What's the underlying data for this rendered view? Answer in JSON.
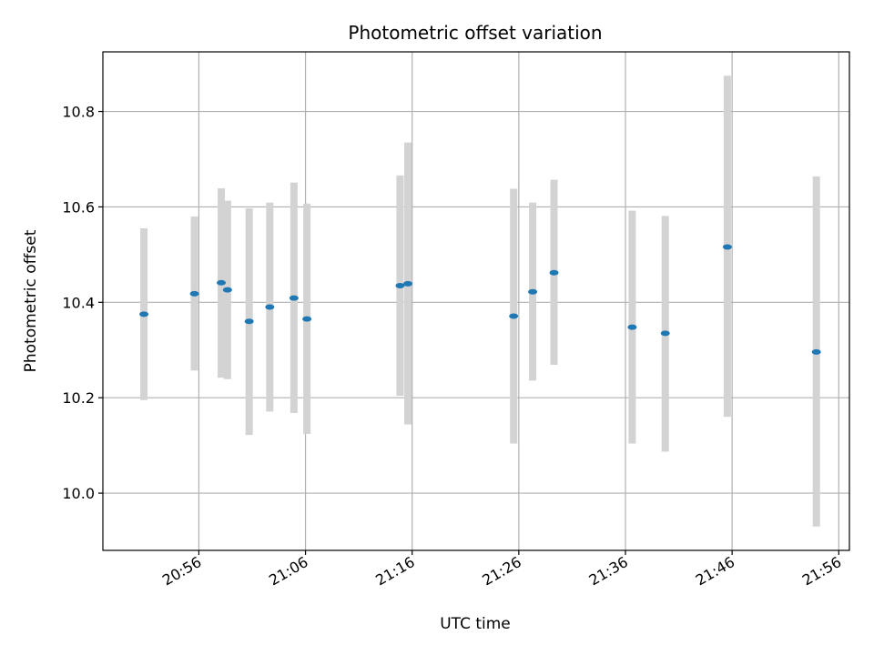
{
  "chart_data": {
    "type": "scatter",
    "title": "Photometric offset variation",
    "xlabel": "UTC time",
    "ylabel": "Photometric offset",
    "x_unit": "UTC time (HH:MM)",
    "xlim": [
      "20:47",
      "21:57"
    ],
    "ylim": [
      9.88,
      10.925
    ],
    "xticks": [
      "20:56",
      "21:06",
      "21:16",
      "21:26",
      "21:36",
      "21:46",
      "21:56"
    ],
    "yticks": [
      10.0,
      10.2,
      10.4,
      10.6,
      10.8
    ],
    "ytick_labels": [
      "10.0",
      "10.2",
      "10.4",
      "10.6",
      "10.8"
    ],
    "grid": true,
    "colors": {
      "points": "#1f77b4",
      "errorbars": "#d3d3d3",
      "grid": "#b0b0b0"
    },
    "points": [
      {
        "x": "20:50:51",
        "y": 10.375,
        "ymin": 10.195,
        "ymax": 10.555
      },
      {
        "x": "20:55:35",
        "y": 10.418,
        "ymin": 10.257,
        "ymax": 10.58
      },
      {
        "x": "20:58:06",
        "y": 10.441,
        "ymin": 10.242,
        "ymax": 10.639
      },
      {
        "x": "20:58:41",
        "y": 10.426,
        "ymin": 10.239,
        "ymax": 10.613
      },
      {
        "x": "21:00:43",
        "y": 10.36,
        "ymin": 10.122,
        "ymax": 10.597
      },
      {
        "x": "21:02:39",
        "y": 10.39,
        "ymin": 10.171,
        "ymax": 10.609
      },
      {
        "x": "21:04:55",
        "y": 10.409,
        "ymin": 10.168,
        "ymax": 10.651
      },
      {
        "x": "21:06:08",
        "y": 10.365,
        "ymin": 10.124,
        "ymax": 10.607
      },
      {
        "x": "21:14:52",
        "y": 10.435,
        "ymin": 10.204,
        "ymax": 10.666
      },
      {
        "x": "21:15:36",
        "y": 10.439,
        "ymin": 10.144,
        "ymax": 10.735
      },
      {
        "x": "21:25:31",
        "y": 10.371,
        "ymin": 10.104,
        "ymax": 10.638
      },
      {
        "x": "21:27:18",
        "y": 10.422,
        "ymin": 10.236,
        "ymax": 10.609
      },
      {
        "x": "21:29:18",
        "y": 10.462,
        "ymin": 10.269,
        "ymax": 10.657
      },
      {
        "x": "21:36:38",
        "y": 10.348,
        "ymin": 10.104,
        "ymax": 10.592
      },
      {
        "x": "21:39:44",
        "y": 10.335,
        "ymin": 10.087,
        "ymax": 10.581
      },
      {
        "x": "21:45:33",
        "y": 10.516,
        "ymin": 10.16,
        "ymax": 10.875
      },
      {
        "x": "21:53:54",
        "y": 10.296,
        "ymin": 9.93,
        "ymax": 10.664
      }
    ]
  }
}
